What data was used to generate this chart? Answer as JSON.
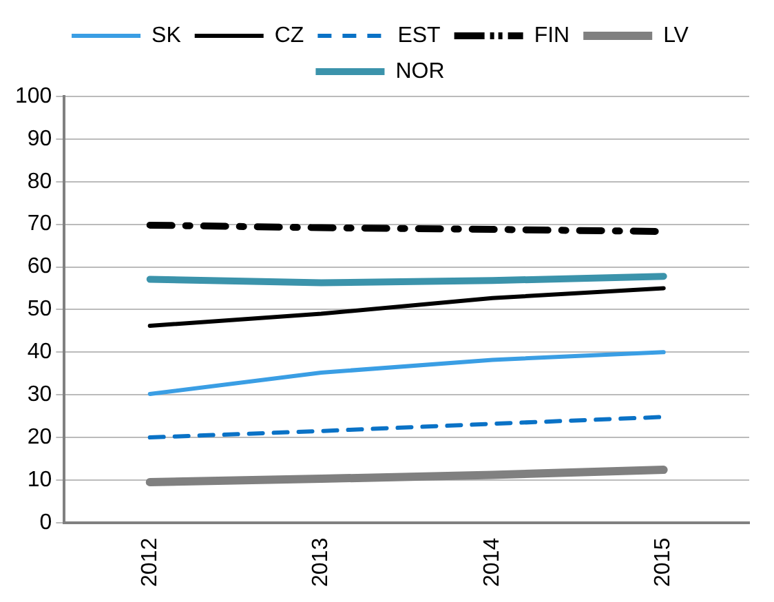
{
  "chart_data": {
    "type": "line",
    "categories": [
      "2012",
      "2013",
      "2014",
      "2015"
    ],
    "series": [
      {
        "name": "SK",
        "color": "#3a9ee4",
        "line_style": "solid",
        "values": [
          30.2,
          35.2,
          38.2,
          40
        ]
      },
      {
        "name": "CZ",
        "color": "#000000",
        "line_style": "solid",
        "values": [
          46.2,
          49,
          52.7,
          55
        ]
      },
      {
        "name": "EST",
        "color": "#0a72c6",
        "line_style": "dashed",
        "values": [
          20,
          21.5,
          23.2,
          24.8
        ]
      },
      {
        "name": "FIN",
        "color": "#000000",
        "line_style": "dashed",
        "values": [
          69.8,
          69.2,
          68.8,
          68.3
        ]
      },
      {
        "name": "LV",
        "color": "#808080",
        "line_style": "solid",
        "values": [
          9.5,
          10.3,
          11.2,
          12.4
        ]
      },
      {
        "name": "NOR",
        "color": "#3b93ab",
        "line_style": "solid",
        "values": [
          57.1,
          56.3,
          56.8,
          57.8
        ]
      }
    ],
    "ylim": [
      0,
      100
    ],
    "yticks": [
      0,
      10,
      20,
      30,
      40,
      50,
      60,
      70,
      80,
      90,
      100
    ],
    "grid": "y",
    "legend": "top",
    "marker": "none"
  }
}
